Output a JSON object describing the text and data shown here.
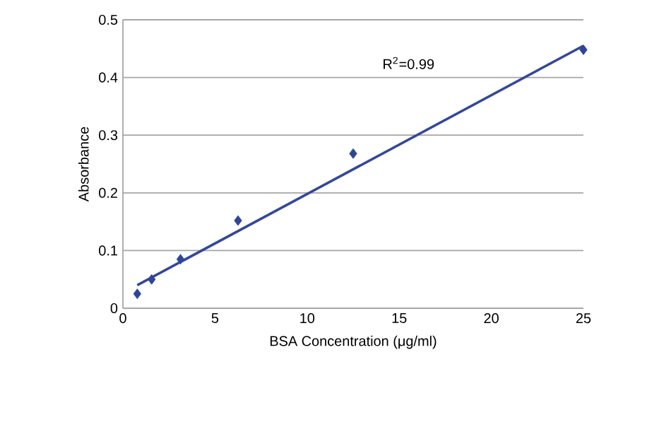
{
  "chart_data": {
    "type": "scatter",
    "xlabel": "BSA Concentration (μg/ml)",
    "ylabel": "Absorbance",
    "series": [
      {
        "color": "#2e4696",
        "x": [
          0.78,
          1.56,
          3.125,
          6.25,
          12.5,
          25
        ],
        "values": [
          0.025,
          0.05,
          0.085,
          0.152,
          0.268,
          0.448
        ]
      },
      {
        "type": "line",
        "marker": "none",
        "color": "#34489a",
        "x": [
          0.78,
          25
        ],
        "values": [
          0.04,
          0.455
        ]
      }
    ],
    "marker": "diamond",
    "annotations": [
      "R$^{2}$=0.99"
    ],
    "xlim": [
      0,
      25
    ],
    "xticks": [
      0,
      5,
      10,
      15,
      20,
      25
    ],
    "ylim": [
      0,
      0.5
    ],
    "yticks": [
      0,
      0.1,
      0.2,
      0.3,
      0.4,
      0.5
    ],
    "grid": "y"
  }
}
